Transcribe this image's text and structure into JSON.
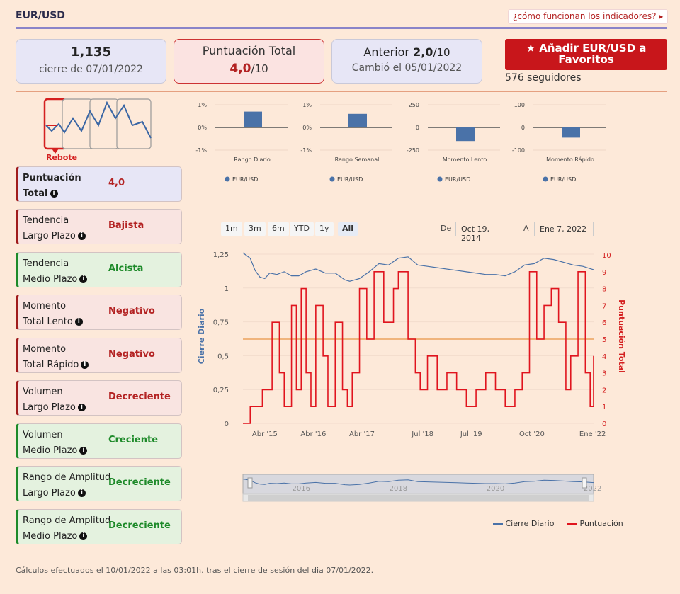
{
  "header": {
    "title": "EUR/USD",
    "help_link": "¿cómo funcionan los indicadores? ▸"
  },
  "cards": {
    "close_value": "1,135",
    "close_date": "cierre de 07/01/2022",
    "total_label": "Puntuación Total",
    "total_score": "4,0",
    "total_suffix": "/10",
    "prev_label": "Anterior",
    "prev_score": "2,0",
    "prev_suffix": "/10",
    "changed": "Cambió el 05/01/2022"
  },
  "favorites": {
    "button_label": "★ Añadir EUR/USD a Favoritos",
    "followers": "576 seguidores"
  },
  "logo": {
    "label": "Rebote"
  },
  "indicators": [
    {
      "line1": "Puntuación",
      "line2": "Total",
      "value": "4,0"
    },
    {
      "line1": "Tendencia",
      "line2": "Largo Plazo",
      "value": "Bajista"
    },
    {
      "line1": "Tendencia",
      "line2": "Medio Plazo",
      "value": "Alcista"
    },
    {
      "line1": "Momento",
      "line2": "Total Lento",
      "value": "Negativo"
    },
    {
      "line1": "Momento",
      "line2": "Total Rápido",
      "value": "Negativo"
    },
    {
      "line1": "Volumen",
      "line2": "Largo Plazo",
      "value": "Decreciente"
    },
    {
      "line1": "Volumen",
      "line2": "Medio Plazo",
      "value": "Creciente"
    },
    {
      "line1": "Rango de Amplitud",
      "line2": "Largo Plazo",
      "value": "Decreciente"
    },
    {
      "line1": "Rango de Amplitud",
      "line2": "Medio Plazo",
      "value": "Decreciente"
    }
  ],
  "range": {
    "buttons": [
      "1m",
      "3m",
      "6m",
      "YTD",
      "1y",
      "All"
    ],
    "active": "All",
    "from_label": "De",
    "from_date": "Oct 19, 2014",
    "to_label": "A",
    "to_date": "Ene 7, 2022"
  },
  "footer": "Cálculos efectuados el 10/01/2022 a las 03:01h. tras el cierre de sesión del dia 07/01/2022.",
  "colors": {
    "accent": "#c8161b",
    "series_close": "#4a72a8",
    "series_score": "#e0141e",
    "threshold": "#f0b47c"
  },
  "chart_data": [
    {
      "type": "bar",
      "categories": [
        "Rango Diario"
      ],
      "series": [
        {
          "name": "EUR/USD",
          "values": [
            0.7
          ]
        }
      ],
      "ylim": [
        -1,
        1
      ],
      "yticks": [
        "1%",
        "0%",
        "-1%"
      ]
    },
    {
      "type": "bar",
      "categories": [
        "Rango Semanal"
      ],
      "series": [
        {
          "name": "EUR/USD",
          "values": [
            0.6
          ]
        }
      ],
      "ylim": [
        -1,
        1
      ],
      "yticks": [
        "1%",
        "0%",
        "-1%"
      ]
    },
    {
      "type": "bar",
      "categories": [
        "Momento Lento"
      ],
      "series": [
        {
          "name": "EUR/USD",
          "values": [
            -150
          ]
        }
      ],
      "ylim": [
        -250,
        250
      ],
      "yticks": [
        "250",
        "0",
        "-250"
      ]
    },
    {
      "type": "bar",
      "categories": [
        "Momento Rápido"
      ],
      "series": [
        {
          "name": "EUR/USD",
          "values": [
            -45
          ]
        }
      ],
      "ylim": [
        -100,
        100
      ],
      "yticks": [
        "100",
        "0",
        "-100"
      ]
    },
    {
      "type": "line",
      "x_ticks": [
        "Abr '15",
        "Abr '16",
        "Abr '17",
        "Jul '18",
        "Jul '19",
        "Oct '20",
        "Ene '22"
      ],
      "ylabel": "Cierre Diario",
      "y2label": "Puntuación Total",
      "yticks": [
        "1,25",
        "1",
        "0,75",
        "0,5",
        "0,25",
        "0"
      ],
      "y2ticks": [
        "10",
        "9",
        "8",
        "7",
        "6",
        "5",
        "4",
        "3",
        "2",
        "1",
        "0"
      ],
      "ylim": [
        0,
        1.25
      ],
      "y2lim": [
        0,
        10
      ],
      "threshold": 5,
      "navigator_ticks": [
        "2016",
        "2018",
        "2020",
        "2022"
      ],
      "series": [
        {
          "name": "Cierre Diario",
          "x": [
            2014.8,
            2014.95,
            2015.05,
            2015.15,
            2015.25,
            2015.35,
            2015.5,
            2015.65,
            2015.8,
            2015.95,
            2016.1,
            2016.3,
            2016.5,
            2016.7,
            2016.9,
            2017.0,
            2017.2,
            2017.4,
            2017.6,
            2017.8,
            2018.0,
            2018.2,
            2018.4,
            2018.6,
            2018.8,
            2019.0,
            2019.2,
            2019.4,
            2019.6,
            2019.8,
            2020.0,
            2020.2,
            2020.4,
            2020.6,
            2020.8,
            2021.0,
            2021.2,
            2021.4,
            2021.6,
            2021.8,
            2022.02
          ],
          "values": [
            1.26,
            1.22,
            1.13,
            1.08,
            1.07,
            1.11,
            1.1,
            1.12,
            1.09,
            1.09,
            1.12,
            1.14,
            1.11,
            1.11,
            1.06,
            1.05,
            1.07,
            1.12,
            1.18,
            1.17,
            1.22,
            1.23,
            1.17,
            1.16,
            1.15,
            1.14,
            1.13,
            1.12,
            1.11,
            1.1,
            1.1,
            1.09,
            1.12,
            1.17,
            1.18,
            1.22,
            1.21,
            1.19,
            1.17,
            1.16,
            1.135
          ]
        },
        {
          "name": "Puntuación",
          "x": [
            2014.8,
            2014.95,
            2015.0,
            2015.2,
            2015.4,
            2015.55,
            2015.65,
            2015.8,
            2015.9,
            2016.0,
            2016.1,
            2016.2,
            2016.3,
            2016.45,
            2016.55,
            2016.7,
            2016.85,
            2016.95,
            2017.05,
            2017.2,
            2017.35,
            2017.5,
            2017.7,
            2017.9,
            2018.0,
            2018.2,
            2018.35,
            2018.45,
            2018.6,
            2018.8,
            2019.0,
            2019.2,
            2019.4,
            2019.6,
            2019.8,
            2020.0,
            2020.2,
            2020.4,
            2020.55,
            2020.7,
            2020.85,
            2021.0,
            2021.15,
            2021.3,
            2021.45,
            2021.55,
            2021.7,
            2021.85,
            2021.95,
            2022.02
          ],
          "values": [
            0,
            1,
            1,
            2,
            6,
            3,
            1,
            7,
            2,
            8,
            3,
            1,
            7,
            4,
            1,
            6,
            2,
            1,
            3,
            8,
            5,
            9,
            6,
            8,
            9,
            5,
            3,
            2,
            4,
            2,
            3,
            2,
            1,
            2,
            3,
            2,
            1,
            2,
            3,
            9,
            5,
            7,
            8,
            6,
            2,
            4,
            9,
            3,
            1,
            4
          ]
        }
      ]
    }
  ],
  "legend": {
    "close": "Cierre Diario",
    "score": "Puntuación"
  }
}
